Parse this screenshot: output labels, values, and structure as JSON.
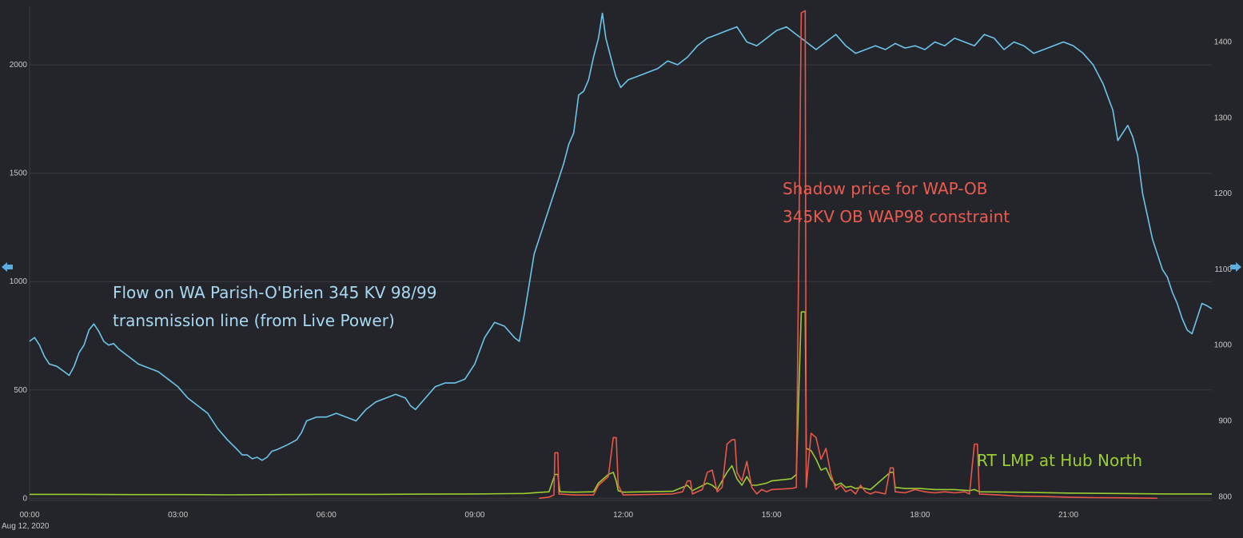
{
  "chart_data": {
    "type": "line",
    "x_ticks": [
      "00:00",
      "03:00",
      "06:00",
      "09:00",
      "12:00",
      "15:00",
      "18:00",
      "21:00"
    ],
    "x_date_label": "Aug 12, 2020",
    "x_range_hours": [
      0,
      23.9
    ],
    "y_left": {
      "ticks": [
        "0",
        "500",
        "1000",
        "1500",
        "2000"
      ],
      "range": [
        -10,
        2270
      ]
    },
    "y_right": {
      "ticks": [
        "800",
        "900",
        "1000",
        "1100",
        "1200",
        "1300",
        "1400"
      ],
      "range": [
        795,
        1447
      ]
    },
    "grid": true,
    "series": [
      {
        "name": "Flow on WA Parish-O'Brien 345 KV 98/99 transmission line (from Live Power)",
        "color": "#6cc4ea",
        "axis": "right",
        "points": [
          [
            0.0,
            1005
          ],
          [
            0.1,
            1010
          ],
          [
            0.2,
            1000
          ],
          [
            0.3,
            985
          ],
          [
            0.4,
            975
          ],
          [
            0.55,
            972
          ],
          [
            0.7,
            965
          ],
          [
            0.8,
            960
          ],
          [
            0.9,
            972
          ],
          [
            1.0,
            990
          ],
          [
            1.1,
            1000
          ],
          [
            1.2,
            1020
          ],
          [
            1.3,
            1028
          ],
          [
            1.4,
            1018
          ],
          [
            1.5,
            1005
          ],
          [
            1.6,
            1000
          ],
          [
            1.7,
            1002
          ],
          [
            1.8,
            995
          ],
          [
            1.9,
            990
          ],
          [
            2.0,
            985
          ],
          [
            2.2,
            975
          ],
          [
            2.4,
            970
          ],
          [
            2.6,
            965
          ],
          [
            2.8,
            955
          ],
          [
            3.0,
            945
          ],
          [
            3.2,
            930
          ],
          [
            3.4,
            920
          ],
          [
            3.6,
            910
          ],
          [
            3.8,
            890
          ],
          [
            4.0,
            875
          ],
          [
            4.2,
            862
          ],
          [
            4.3,
            855
          ],
          [
            4.4,
            855
          ],
          [
            4.5,
            850
          ],
          [
            4.6,
            852
          ],
          [
            4.7,
            848
          ],
          [
            4.8,
            852
          ],
          [
            4.9,
            860
          ],
          [
            5.0,
            862
          ],
          [
            5.2,
            868
          ],
          [
            5.4,
            875
          ],
          [
            5.5,
            885
          ],
          [
            5.6,
            900
          ],
          [
            5.8,
            905
          ],
          [
            6.0,
            905
          ],
          [
            6.2,
            910
          ],
          [
            6.4,
            905
          ],
          [
            6.6,
            900
          ],
          [
            6.8,
            915
          ],
          [
            7.0,
            925
          ],
          [
            7.2,
            930
          ],
          [
            7.4,
            935
          ],
          [
            7.6,
            930
          ],
          [
            7.7,
            920
          ],
          [
            7.8,
            915
          ],
          [
            8.0,
            930
          ],
          [
            8.2,
            945
          ],
          [
            8.4,
            950
          ],
          [
            8.6,
            950
          ],
          [
            8.8,
            955
          ],
          [
            9.0,
            975
          ],
          [
            9.2,
            1010
          ],
          [
            9.4,
            1030
          ],
          [
            9.6,
            1025
          ],
          [
            9.8,
            1010
          ],
          [
            9.9,
            1005
          ],
          [
            10.0,
            1040
          ],
          [
            10.1,
            1080
          ],
          [
            10.2,
            1120
          ],
          [
            10.4,
            1160
          ],
          [
            10.6,
            1200
          ],
          [
            10.8,
            1240
          ],
          [
            10.9,
            1265
          ],
          [
            11.0,
            1280
          ],
          [
            11.1,
            1330
          ],
          [
            11.2,
            1335
          ],
          [
            11.3,
            1350
          ],
          [
            11.4,
            1380
          ],
          [
            11.5,
            1405
          ],
          [
            11.58,
            1438
          ],
          [
            11.65,
            1405
          ],
          [
            11.75,
            1380
          ],
          [
            11.85,
            1355
          ],
          [
            11.95,
            1340
          ],
          [
            12.1,
            1350
          ],
          [
            12.3,
            1355
          ],
          [
            12.5,
            1360
          ],
          [
            12.7,
            1365
          ],
          [
            12.9,
            1375
          ],
          [
            13.1,
            1370
          ],
          [
            13.3,
            1380
          ],
          [
            13.5,
            1395
          ],
          [
            13.7,
            1405
          ],
          [
            13.9,
            1410
          ],
          [
            14.1,
            1415
          ],
          [
            14.3,
            1420
          ],
          [
            14.5,
            1400
          ],
          [
            14.7,
            1395
          ],
          [
            14.9,
            1405
          ],
          [
            15.1,
            1415
          ],
          [
            15.3,
            1420
          ],
          [
            15.5,
            1410
          ],
          [
            15.7,
            1400
          ],
          [
            15.9,
            1390
          ],
          [
            16.1,
            1400
          ],
          [
            16.3,
            1410
          ],
          [
            16.5,
            1395
          ],
          [
            16.7,
            1385
          ],
          [
            16.9,
            1390
          ],
          [
            17.1,
            1395
          ],
          [
            17.3,
            1390
          ],
          [
            17.5,
            1398
          ],
          [
            17.7,
            1392
          ],
          [
            17.9,
            1395
          ],
          [
            18.1,
            1390
          ],
          [
            18.3,
            1400
          ],
          [
            18.5,
            1395
          ],
          [
            18.7,
            1405
          ],
          [
            18.9,
            1400
          ],
          [
            19.1,
            1395
          ],
          [
            19.3,
            1410
          ],
          [
            19.5,
            1405
          ],
          [
            19.7,
            1390
          ],
          [
            19.9,
            1400
          ],
          [
            20.1,
            1395
          ],
          [
            20.3,
            1385
          ],
          [
            20.5,
            1390
          ],
          [
            20.7,
            1395
          ],
          [
            20.9,
            1400
          ],
          [
            21.1,
            1395
          ],
          [
            21.3,
            1385
          ],
          [
            21.5,
            1370
          ],
          [
            21.7,
            1345
          ],
          [
            21.9,
            1310
          ],
          [
            22.0,
            1270
          ],
          [
            22.1,
            1280
          ],
          [
            22.2,
            1290
          ],
          [
            22.3,
            1275
          ],
          [
            22.4,
            1250
          ],
          [
            22.5,
            1200
          ],
          [
            22.6,
            1170
          ],
          [
            22.7,
            1140
          ],
          [
            22.8,
            1120
          ],
          [
            22.9,
            1100
          ],
          [
            23.0,
            1090
          ],
          [
            23.1,
            1070
          ],
          [
            23.2,
            1055
          ],
          [
            23.3,
            1035
          ],
          [
            23.4,
            1020
          ],
          [
            23.5,
            1015
          ],
          [
            23.6,
            1035
          ],
          [
            23.7,
            1055
          ],
          [
            23.8,
            1052
          ],
          [
            23.9,
            1048
          ]
        ]
      },
      {
        "name": "Shadow price for WAP-OB 345KV OB  WAP98 constraint",
        "color": "#e8574a",
        "axis": "left",
        "points": [
          [
            10.3,
            0
          ],
          [
            10.5,
            5
          ],
          [
            10.6,
            15
          ],
          [
            10.62,
            210
          ],
          [
            10.68,
            210
          ],
          [
            10.7,
            20
          ],
          [
            11.0,
            15
          ],
          [
            11.4,
            15
          ],
          [
            11.5,
            60
          ],
          [
            11.7,
            100
          ],
          [
            11.8,
            280
          ],
          [
            11.86,
            280
          ],
          [
            11.9,
            60
          ],
          [
            12.0,
            15
          ],
          [
            13.0,
            20
          ],
          [
            13.2,
            30
          ],
          [
            13.3,
            80
          ],
          [
            13.36,
            80
          ],
          [
            13.4,
            20
          ],
          [
            13.6,
            40
          ],
          [
            13.7,
            120
          ],
          [
            13.8,
            130
          ],
          [
            13.9,
            30
          ],
          [
            14.0,
            50
          ],
          [
            14.1,
            250
          ],
          [
            14.2,
            270
          ],
          [
            14.26,
            270
          ],
          [
            14.3,
            120
          ],
          [
            14.4,
            80
          ],
          [
            14.5,
            170
          ],
          [
            14.6,
            50
          ],
          [
            14.7,
            20
          ],
          [
            14.8,
            40
          ],
          [
            14.9,
            30
          ],
          [
            15.0,
            40
          ],
          [
            15.4,
            45
          ],
          [
            15.5,
            50
          ],
          [
            15.6,
            2240
          ],
          [
            15.68,
            2250
          ],
          [
            15.7,
            50
          ],
          [
            15.8,
            300
          ],
          [
            15.9,
            280
          ],
          [
            16.0,
            180
          ],
          [
            16.1,
            230
          ],
          [
            16.2,
            110
          ],
          [
            16.3,
            40
          ],
          [
            16.4,
            60
          ],
          [
            16.5,
            30
          ],
          [
            16.6,
            40
          ],
          [
            16.7,
            20
          ],
          [
            16.8,
            60
          ],
          [
            16.9,
            30
          ],
          [
            17.0,
            20
          ],
          [
            17.1,
            30
          ],
          [
            17.3,
            20
          ],
          [
            17.4,
            140
          ],
          [
            17.46,
            140
          ],
          [
            17.5,
            30
          ],
          [
            17.7,
            25
          ],
          [
            17.9,
            40
          ],
          [
            18.1,
            30
          ],
          [
            18.3,
            25
          ],
          [
            18.5,
            30
          ],
          [
            18.7,
            25
          ],
          [
            18.9,
            30
          ],
          [
            19.0,
            20
          ],
          [
            19.1,
            250
          ],
          [
            19.16,
            250
          ],
          [
            19.2,
            20
          ],
          [
            19.6,
            15
          ],
          [
            20.0,
            10
          ],
          [
            20.5,
            8
          ],
          [
            21.0,
            5
          ],
          [
            21.5,
            3
          ],
          [
            22.0,
            2
          ],
          [
            22.8,
            0
          ]
        ]
      },
      {
        "name": "RT LMP at Hub North",
        "color": "#9acd32",
        "axis": "left",
        "points": [
          [
            0.0,
            18
          ],
          [
            1.0,
            18
          ],
          [
            2.0,
            17
          ],
          [
            3.0,
            17
          ],
          [
            4.0,
            16
          ],
          [
            5.0,
            17
          ],
          [
            6.0,
            18
          ],
          [
            7.0,
            18
          ],
          [
            8.0,
            19
          ],
          [
            9.0,
            20
          ],
          [
            10.0,
            22
          ],
          [
            10.5,
            30
          ],
          [
            10.62,
            110
          ],
          [
            10.68,
            110
          ],
          [
            10.72,
            30
          ],
          [
            11.0,
            28
          ],
          [
            11.4,
            30
          ],
          [
            11.5,
            70
          ],
          [
            11.7,
            110
          ],
          [
            11.8,
            120
          ],
          [
            11.86,
            80
          ],
          [
            11.9,
            35
          ],
          [
            12.0,
            28
          ],
          [
            13.0,
            32
          ],
          [
            13.3,
            60
          ],
          [
            13.4,
            35
          ],
          [
            13.7,
            70
          ],
          [
            13.8,
            60
          ],
          [
            13.9,
            40
          ],
          [
            14.1,
            120
          ],
          [
            14.2,
            150
          ],
          [
            14.3,
            90
          ],
          [
            14.4,
            60
          ],
          [
            14.5,
            100
          ],
          [
            14.6,
            60
          ],
          [
            14.7,
            60
          ],
          [
            14.9,
            70
          ],
          [
            15.0,
            80
          ],
          [
            15.4,
            90
          ],
          [
            15.5,
            110
          ],
          [
            15.6,
            860
          ],
          [
            15.68,
            860
          ],
          [
            15.7,
            230
          ],
          [
            15.8,
            220
          ],
          [
            15.9,
            180
          ],
          [
            16.0,
            130
          ],
          [
            16.1,
            140
          ],
          [
            16.2,
            90
          ],
          [
            16.3,
            60
          ],
          [
            16.4,
            70
          ],
          [
            16.5,
            50
          ],
          [
            16.6,
            55
          ],
          [
            16.7,
            45
          ],
          [
            16.8,
            50
          ],
          [
            16.9,
            45
          ],
          [
            17.0,
            40
          ],
          [
            17.4,
            120
          ],
          [
            17.46,
            120
          ],
          [
            17.5,
            50
          ],
          [
            17.7,
            45
          ],
          [
            18.0,
            45
          ],
          [
            18.3,
            40
          ],
          [
            18.7,
            40
          ],
          [
            19.0,
            35
          ],
          [
            19.1,
            40
          ],
          [
            19.2,
            30
          ],
          [
            20.0,
            28
          ],
          [
            21.0,
            24
          ],
          [
            22.0,
            22
          ],
          [
            23.0,
            20
          ],
          [
            23.9,
            20
          ]
        ]
      }
    ],
    "annotations": [
      {
        "lines": [
          "Flow on WA Parish-O'Brien 345 KV 98/99",
          "transmission line (from Live Power)"
        ],
        "color": "#a9d8f2"
      },
      {
        "lines": [
          "Shadow price for WAP-OB",
          "345KV OB  WAP98 constraint"
        ],
        "color": "#ec5b4f"
      },
      {
        "lines": [
          "RT LMP at Hub North"
        ],
        "color": "#9acd32"
      }
    ]
  },
  "colors": {
    "background": "#24252a",
    "grid": "#3a3b40",
    "axis_arrow": "#5aaee0"
  },
  "icons": {
    "left": "left-arrow-icon",
    "right": "right-arrow-icon"
  }
}
